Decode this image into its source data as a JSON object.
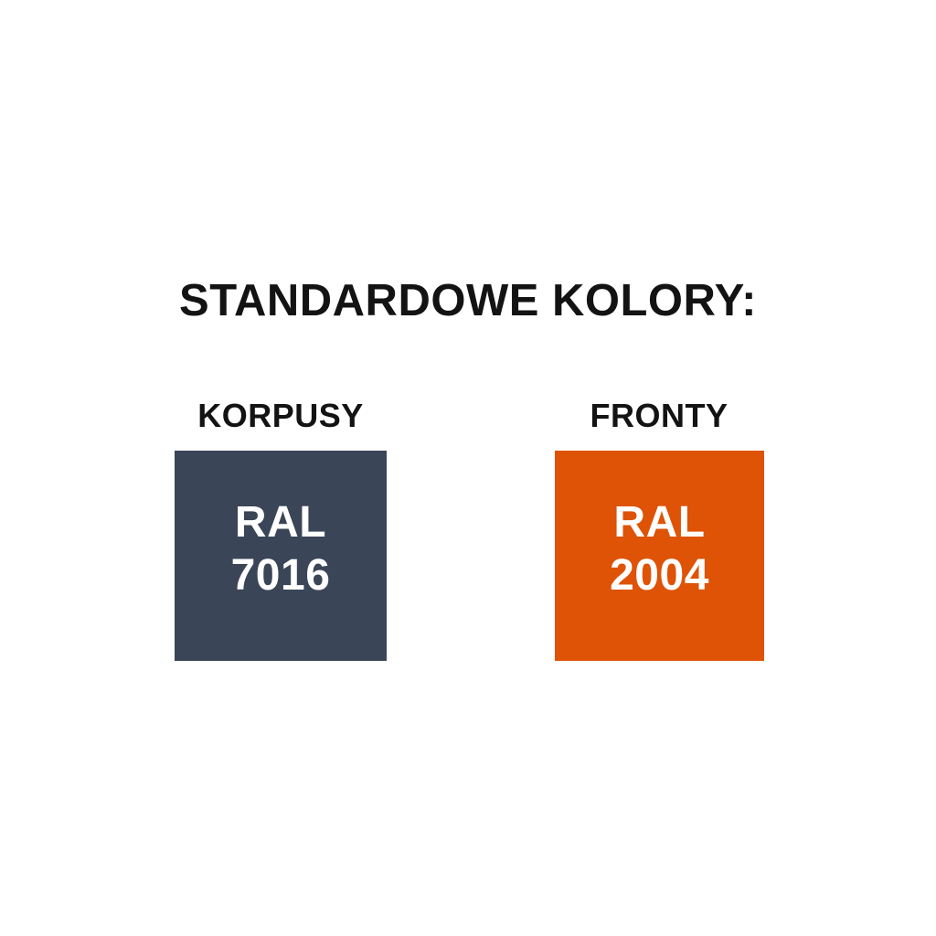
{
  "title": "STANDARDOWE KOLORY:",
  "columns": [
    {
      "label": "KORPUSY",
      "swatch": {
        "line1": "RAL",
        "line2": "7016",
        "color": "#3A4557"
      }
    },
    {
      "label": "FRONTY",
      "swatch": {
        "line1": "RAL",
        "line2": "2004",
        "color": "#DE5306"
      }
    }
  ],
  "colors": {
    "background": "#FFFFFF",
    "heading_text": "#131313",
    "swatch_text": "#FFFFFF"
  }
}
